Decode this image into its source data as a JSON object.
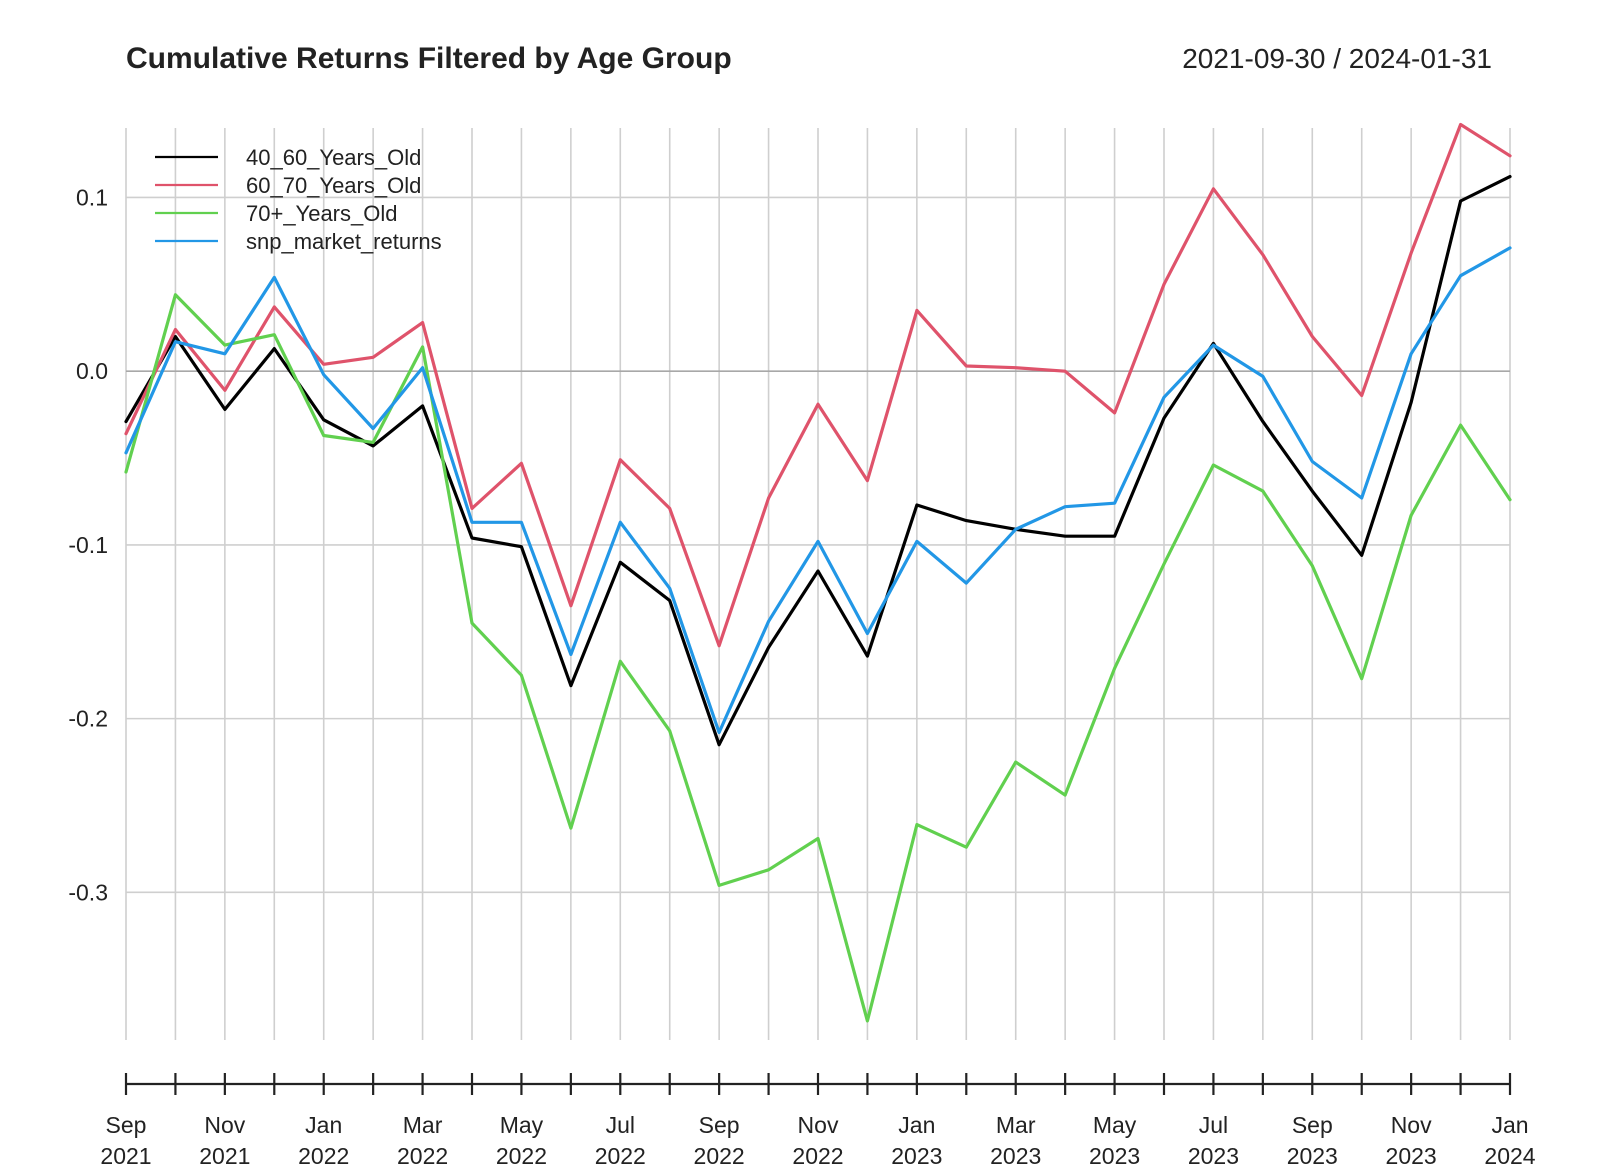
{
  "chart_data": {
    "type": "line",
    "title": "Cumulative Returns Filtered by Age Group",
    "date_range": "2021-09-30 / 2024-01-31",
    "x": [
      "2021-09-30",
      "2021-10-31",
      "2021-11-30",
      "2021-12-31",
      "2022-01-31",
      "2022-02-28",
      "2022-03-31",
      "2022-04-30",
      "2022-05-31",
      "2022-06-30",
      "2022-07-31",
      "2022-08-31",
      "2022-09-30",
      "2022-10-31",
      "2022-11-30",
      "2022-12-31",
      "2023-01-31",
      "2023-02-28",
      "2023-03-31",
      "2023-04-30",
      "2023-05-31",
      "2023-06-30",
      "2023-07-31",
      "2023-08-31",
      "2023-09-30",
      "2023-10-31",
      "2023-11-30",
      "2023-12-31",
      "2024-01-31"
    ],
    "ylim": [
      -0.385,
      0.14
    ],
    "y_ticks": [
      0.1,
      0.0,
      -0.1,
      -0.2,
      -0.3
    ],
    "y_tick_labels": [
      "0.1",
      "0.0",
      "-0.1",
      "-0.2",
      "-0.3"
    ],
    "x_tick_labels": [
      {
        "date": "2021-09-30",
        "month": "Sep",
        "year": "2021"
      },
      {
        "date": "2021-11-30",
        "month": "Nov",
        "year": "2021"
      },
      {
        "date": "2022-01-31",
        "month": "Jan",
        "year": "2022"
      },
      {
        "date": "2022-03-31",
        "month": "Mar",
        "year": "2022"
      },
      {
        "date": "2022-05-31",
        "month": "May",
        "year": "2022"
      },
      {
        "date": "2022-07-31",
        "month": "Jul",
        "year": "2022"
      },
      {
        "date": "2022-09-30",
        "month": "Sep",
        "year": "2022"
      },
      {
        "date": "2022-11-30",
        "month": "Nov",
        "year": "2022"
      },
      {
        "date": "2023-01-31",
        "month": "Jan",
        "year": "2023"
      },
      {
        "date": "2023-03-31",
        "month": "Mar",
        "year": "2023"
      },
      {
        "date": "2023-05-31",
        "month": "May",
        "year": "2023"
      },
      {
        "date": "2023-07-31",
        "month": "Jul",
        "year": "2023"
      },
      {
        "date": "2023-09-30",
        "month": "Sep",
        "year": "2023"
      },
      {
        "date": "2023-11-30",
        "month": "Nov",
        "year": "2023"
      },
      {
        "date": "2024-01-31",
        "month": "Jan",
        "year": "2024"
      }
    ],
    "grid": true,
    "legend_position": "top-left",
    "series": [
      {
        "name": "40_60_Years_Old",
        "color": "#000000",
        "values": [
          -0.029,
          0.02,
          -0.022,
          0.013,
          -0.028,
          -0.043,
          -0.02,
          -0.096,
          -0.101,
          -0.181,
          -0.11,
          -0.132,
          -0.215,
          -0.159,
          -0.115,
          -0.164,
          -0.077,
          -0.086,
          -0.091,
          -0.095,
          -0.095,
          -0.027,
          0.016,
          -0.029,
          -0.069,
          -0.106,
          -0.018,
          0.098,
          0.112
        ]
      },
      {
        "name": "60_70_Years_Old",
        "color": "#DF536B",
        "values": [
          -0.036,
          0.024,
          -0.011,
          0.037,
          0.004,
          0.008,
          0.028,
          -0.079,
          -0.053,
          -0.135,
          -0.051,
          -0.079,
          -0.158,
          -0.073,
          -0.019,
          -0.063,
          0.035,
          0.003,
          0.002,
          0.0,
          -0.024,
          0.05,
          0.105,
          0.067,
          0.02,
          -0.014,
          0.068,
          0.142,
          0.124
        ]
      },
      {
        "name": "70+_Years_Old",
        "color": "#61D04F",
        "values": [
          -0.058,
          0.044,
          0.015,
          0.021,
          -0.037,
          -0.041,
          0.014,
          -0.145,
          -0.175,
          -0.263,
          -0.167,
          -0.207,
          -0.296,
          -0.287,
          -0.269,
          -0.374,
          -0.261,
          -0.274,
          -0.225,
          -0.244,
          -0.171,
          -0.111,
          -0.054,
          -0.069,
          -0.112,
          -0.177,
          -0.083,
          -0.031,
          -0.074
        ]
      },
      {
        "name": "snp_market_returns",
        "color": "#2297E6",
        "values": [
          -0.047,
          0.017,
          0.01,
          0.054,
          -0.002,
          -0.033,
          0.002,
          -0.087,
          -0.087,
          -0.163,
          -0.087,
          -0.125,
          -0.208,
          -0.144,
          -0.098,
          -0.151,
          -0.098,
          -0.122,
          -0.091,
          -0.078,
          -0.076,
          -0.015,
          0.015,
          -0.003,
          -0.052,
          -0.073,
          0.01,
          0.055,
          0.071
        ]
      }
    ]
  }
}
